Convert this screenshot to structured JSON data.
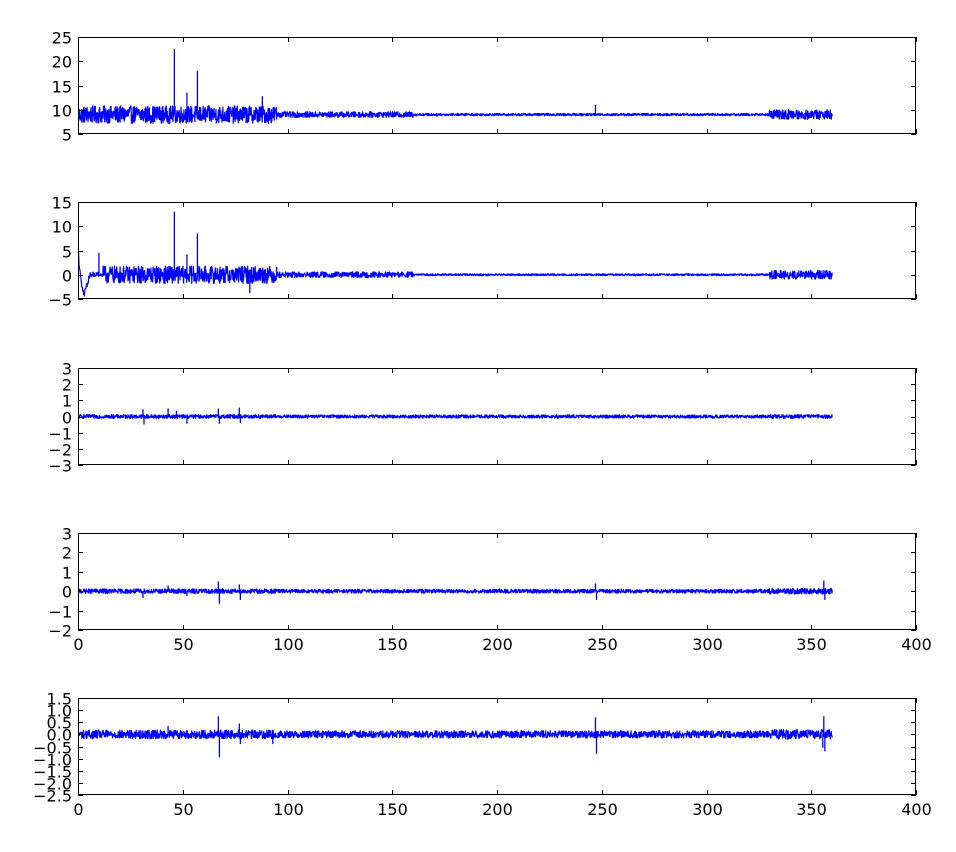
{
  "figure": {
    "background": "#ffffff",
    "line_color": "#0000ff"
  },
  "chart_data": [
    {
      "type": "line",
      "xlim": [
        0,
        400
      ],
      "ylim": [
        5,
        25
      ],
      "yticks": [
        "5",
        "10",
        "15",
        "20",
        "25"
      ],
      "show_xtick_labels": false,
      "x_extent": [
        0,
        360
      ],
      "series": [
        {
          "baseline": 9,
          "early_amp": 1.8,
          "mid_amp": 0.6,
          "late_amp": 0.25,
          "end_amp": 1.0,
          "spikes": [
            [
              46,
              22.5
            ],
            [
              57,
              18
            ],
            [
              52,
              13.5
            ],
            [
              88,
              12.8
            ],
            [
              247,
              11
            ]
          ]
        }
      ]
    },
    {
      "type": "line",
      "xlim": [
        0,
        400
      ],
      "ylim": [
        -5,
        15
      ],
      "yticks": [
        "−5",
        "0",
        "5",
        "10",
        "15"
      ],
      "show_xtick_labels": false,
      "x_extent": [
        0,
        360
      ],
      "series": [
        {
          "baseline": 0,
          "early_amp": 1.8,
          "mid_amp": 0.6,
          "late_amp": 0.2,
          "end_amp": 0.9,
          "initial_transient": true,
          "spikes": [
            [
              46,
              13
            ],
            [
              57,
              8.5
            ],
            [
              52,
              4.2
            ],
            [
              82,
              -3.8
            ],
            [
              10,
              4.5
            ]
          ]
        }
      ]
    },
    {
      "type": "line",
      "xlim": [
        0,
        400
      ],
      "ylim": [
        -3,
        3
      ],
      "yticks": [
        "−3",
        "−2",
        "−1",
        "0",
        "1",
        "2",
        "3"
      ],
      "show_xtick_labels": false,
      "x_extent": [
        0,
        360
      ],
      "series": [
        {
          "baseline": 0,
          "early_amp": 0.12,
          "mid_amp": 0.1,
          "late_amp": 0.1,
          "end_amp": 0.12,
          "spikes": [
            [
              31,
              0.45
            ],
            [
              31.5,
              -0.5
            ],
            [
              43,
              0.5
            ],
            [
              47,
              0.35
            ],
            [
              52,
              -0.45
            ],
            [
              67,
              0.5
            ],
            [
              67.5,
              -0.45
            ],
            [
              77,
              0.55
            ],
            [
              77.5,
              -0.4
            ]
          ]
        }
      ]
    },
    {
      "type": "line",
      "xlim": [
        0,
        400
      ],
      "ylim": [
        -2,
        3
      ],
      "yticks": [
        "−2",
        "−1",
        "0",
        "1",
        "2",
        "3"
      ],
      "xticks": [
        "0",
        "50",
        "100",
        "150",
        "200",
        "250",
        "300",
        "350",
        "400"
      ],
      "show_xtick_labels": true,
      "x_extent": [
        0,
        360
      ],
      "series": [
        {
          "baseline": 0,
          "early_amp": 0.12,
          "mid_amp": 0.1,
          "late_amp": 0.1,
          "end_amp": 0.15,
          "spikes": [
            [
              31,
              -0.35
            ],
            [
              43,
              0.3
            ],
            [
              52,
              -0.25
            ],
            [
              67,
              0.5
            ],
            [
              67.5,
              -0.65
            ],
            [
              77,
              0.35
            ],
            [
              77.5,
              -0.45
            ],
            [
              247,
              0.4
            ],
            [
              247.5,
              -0.45
            ],
            [
              356,
              0.55
            ],
            [
              356.5,
              -0.45
            ]
          ]
        }
      ]
    },
    {
      "type": "line",
      "xlim": [
        0,
        400
      ],
      "ylim": [
        -2.5,
        1.5
      ],
      "yticks": [
        "−2.5",
        "−2.0",
        "−1.5",
        "−1.0",
        "−0.5",
        "0.0",
        "0.5",
        "1.0",
        "1.5"
      ],
      "xticks": [
        "0",
        "50",
        "100",
        "150",
        "200",
        "250",
        "300",
        "350",
        "400"
      ],
      "show_xtick_labels": true,
      "x_extent": [
        0,
        360
      ],
      "series": [
        {
          "baseline": 0,
          "early_amp": 0.18,
          "mid_amp": 0.15,
          "late_amp": 0.15,
          "end_amp": 0.2,
          "spikes": [
            [
              43,
              0.35
            ],
            [
              67,
              0.75
            ],
            [
              67.5,
              -0.95
            ],
            [
              77,
              0.45
            ],
            [
              77.5,
              -0.4
            ],
            [
              93,
              -0.4
            ],
            [
              247,
              0.7
            ],
            [
              247.5,
              -0.8
            ],
            [
              356,
              0.75
            ],
            [
              356.5,
              -0.7
            ],
            [
              355.5,
              -0.55
            ]
          ]
        }
      ]
    }
  ]
}
